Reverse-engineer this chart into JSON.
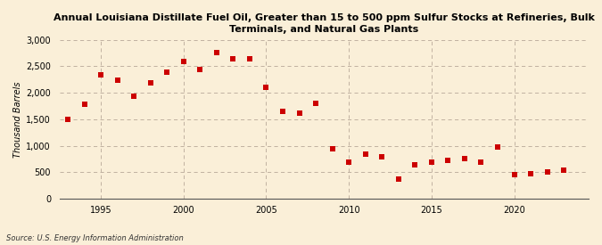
{
  "title_line1": "Annual Louisiana Distillate Fuel Oil, Greater than 15 to 500 ppm Sulfur Stocks at Refineries, Bulk",
  "title_line2": "Terminals, and Natural Gas Plants",
  "ylabel": "Thousand Barrels",
  "source": "Source: U.S. Energy Information Administration",
  "background_color": "#faefd8",
  "marker_color": "#cc0000",
  "years": [
    1993,
    1994,
    1995,
    1996,
    1997,
    1998,
    1999,
    2000,
    2001,
    2002,
    2003,
    2004,
    2005,
    2006,
    2007,
    2008,
    2009,
    2010,
    2011,
    2012,
    2013,
    2014,
    2015,
    2016,
    2017,
    2018,
    2019,
    2020,
    2021,
    2022,
    2023
  ],
  "values": [
    1500,
    1790,
    2340,
    2240,
    1940,
    2180,
    2380,
    2590,
    2440,
    2750,
    2640,
    2640,
    2110,
    1640,
    1620,
    1800,
    935,
    685,
    840,
    790,
    375,
    635,
    685,
    730,
    755,
    695,
    970,
    450,
    475,
    500,
    540
  ],
  "ylim": [
    0,
    3000
  ],
  "yticks": [
    0,
    500,
    1000,
    1500,
    2000,
    2500,
    3000
  ],
  "xlim": [
    1992.5,
    2024.5
  ],
  "xticks": [
    1995,
    2000,
    2005,
    2010,
    2015,
    2020
  ]
}
